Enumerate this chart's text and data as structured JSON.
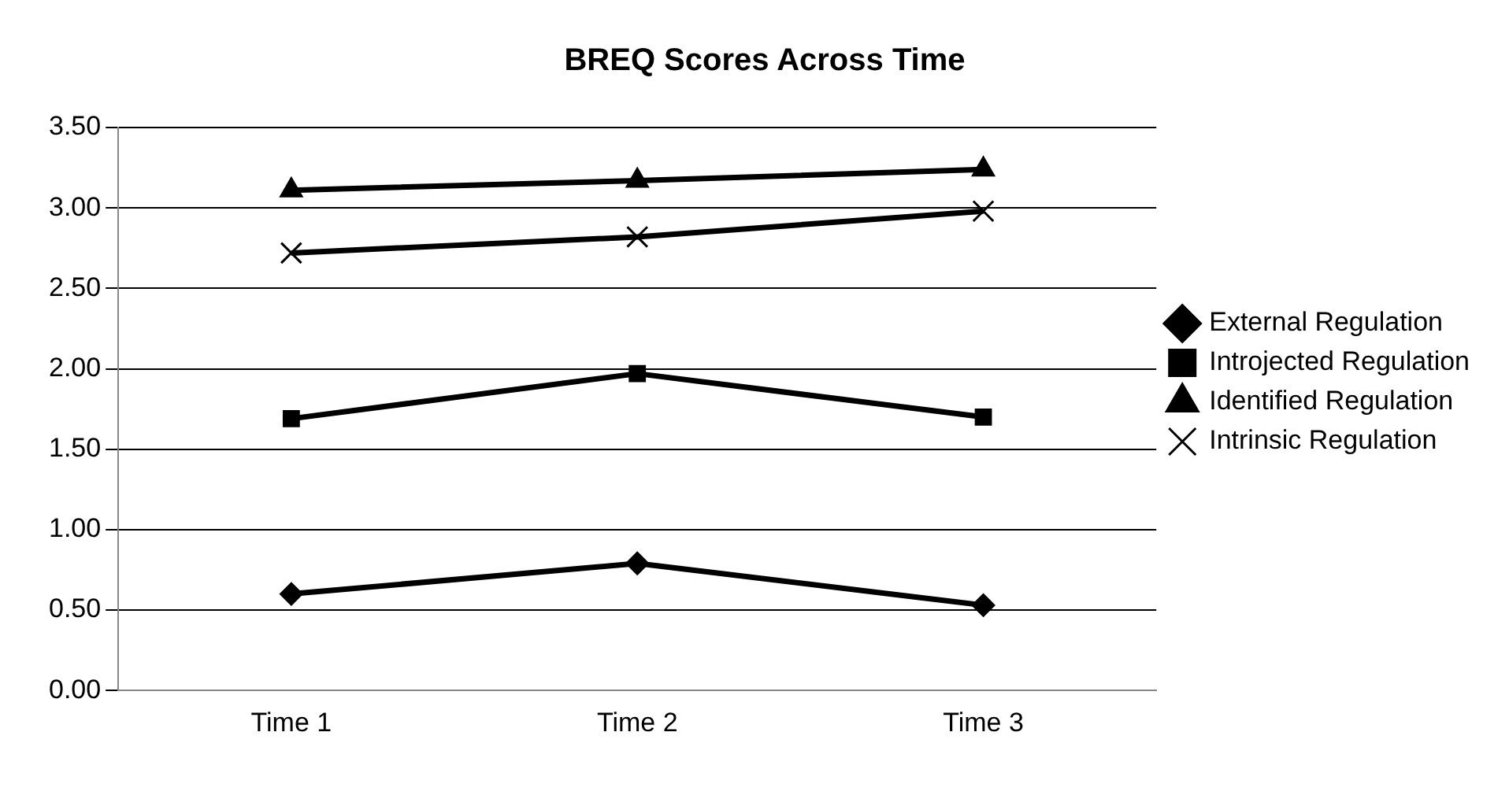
{
  "chart_data": {
    "type": "line",
    "title": "BREQ Scores Across Time",
    "categories": [
      "Time 1",
      "Time 2",
      "Time 3"
    ],
    "series": [
      {
        "name": "External Regulation",
        "color": "#000000",
        "marker": "diamond",
        "values": [
          0.6,
          0.79,
          0.53
        ]
      },
      {
        "name": "Introjected Regulation",
        "color": "#000000",
        "marker": "square",
        "values": [
          1.69,
          1.97,
          1.7
        ]
      },
      {
        "name": "Identified Regulation",
        "color": "#000000",
        "marker": "triangle",
        "values": [
          3.11,
          3.17,
          3.24
        ]
      },
      {
        "name": "Intrinsic Regulation",
        "color": "#000000",
        "marker": "cross",
        "values": [
          2.72,
          2.82,
          2.98
        ]
      }
    ],
    "ylim": [
      0,
      3.5
    ],
    "yticks": [
      {
        "value": 0,
        "label": "0.00"
      },
      {
        "value": 0.5,
        "label": "0.50"
      },
      {
        "value": 1,
        "label": "1.00"
      },
      {
        "value": 1.5,
        "label": "1.50"
      },
      {
        "value": 2,
        "label": "2.00"
      },
      {
        "value": 2.5,
        "label": "2.50"
      },
      {
        "value": 3,
        "label": "3.00"
      },
      {
        "value": 3.5,
        "label": "3.50"
      }
    ],
    "grid": "y",
    "legend": "right",
    "line_style": "solid"
  }
}
